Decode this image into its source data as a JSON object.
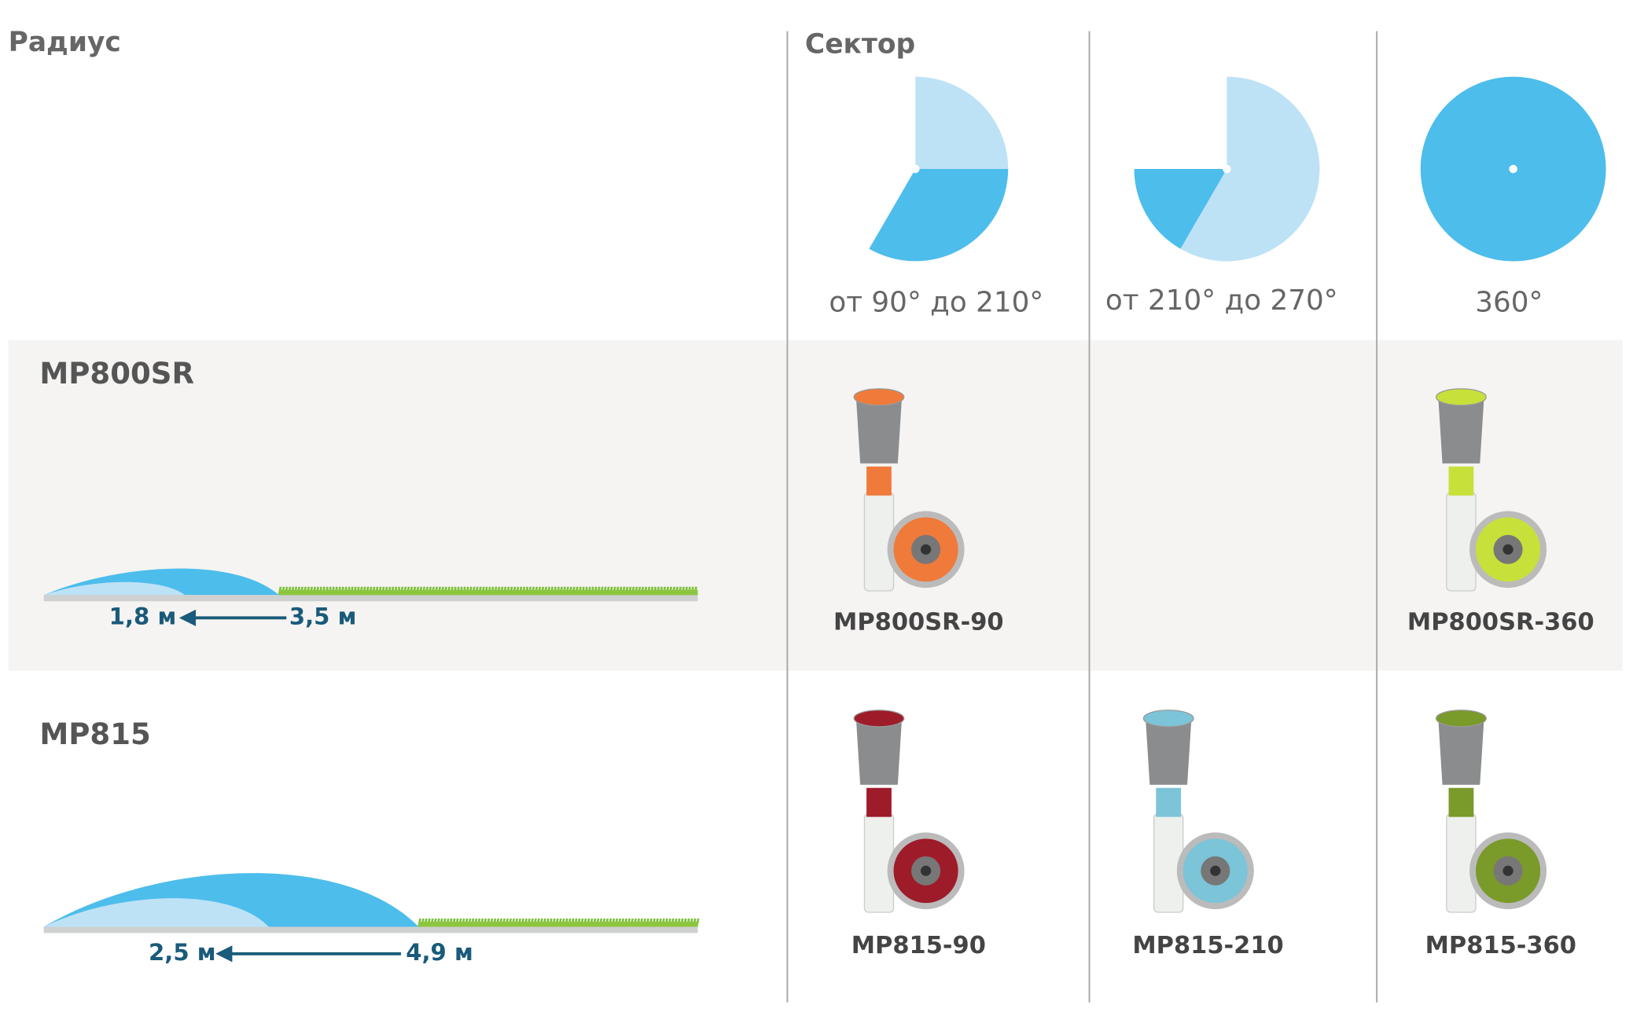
{
  "header": {
    "radius_title": "Радиус",
    "sector_title": "Сектор"
  },
  "sectors": [
    {
      "label": "от 90° до 210°"
    },
    {
      "label": "от 210° до 270°"
    },
    {
      "label": "360°"
    }
  ],
  "rows": [
    {
      "name": "MP800SR",
      "range_min": "1,8 м",
      "range_max": "3,5 м",
      "products": [
        {
          "name": "MP800SR-90",
          "color": "#f07a3a"
        },
        null,
        {
          "name": "MP800SR-360",
          "color": "#c8e03a"
        }
      ]
    },
    {
      "name": "MP815",
      "range_min": "2,5 м",
      "range_max": "4,9 м",
      "products": [
        {
          "name": "MP815-90",
          "color": "#9e1b2a"
        },
        {
          "name": "MP815-210",
          "color": "#7cc4d8"
        },
        {
          "name": "MP815-360",
          "color": "#7a9a2a"
        }
      ]
    }
  ]
}
